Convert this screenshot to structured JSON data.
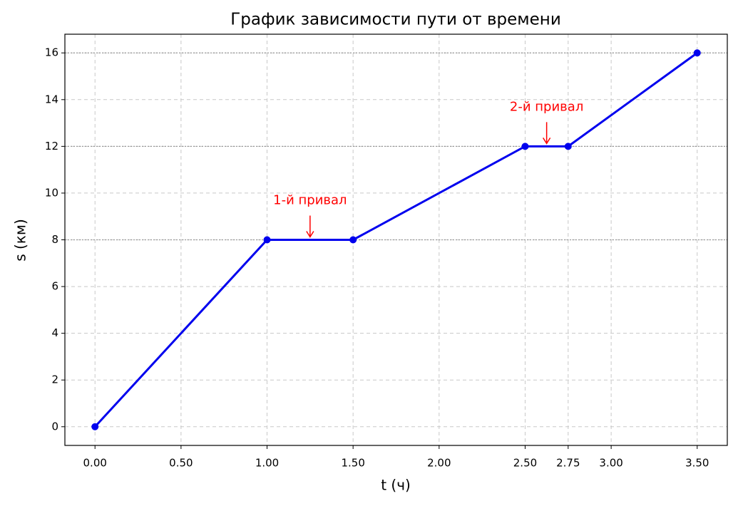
{
  "chart_data": {
    "type": "line",
    "title": "График зависимости пути от времени",
    "x_label": "t (ч)",
    "y_label": "s (км)",
    "x": [
      0,
      1,
      1.5,
      2.5,
      2.75,
      3.5
    ],
    "series": [
      {
        "color": "#0000ee",
        "values": [
          0,
          8,
          8,
          12,
          12,
          16
        ]
      }
    ],
    "xlim": [
      -0.175,
      3.675
    ],
    "ylim": [
      -0.8,
      16.8
    ],
    "xticks": [
      {
        "value": 0,
        "label": "0.00"
      },
      {
        "value": 0.5,
        "label": "0.50"
      },
      {
        "value": 1,
        "label": "1.00"
      },
      {
        "value": 1.5,
        "label": "1.50"
      },
      {
        "value": 2,
        "label": "2.00"
      },
      {
        "value": 2.5,
        "label": "2.50"
      },
      {
        "value": 2.75,
        "label": "2.75"
      },
      {
        "value": 3,
        "label": "3.00"
      },
      {
        "value": 3.5,
        "label": "3.50"
      }
    ],
    "yticks": [
      0,
      2,
      4,
      6,
      8,
      10,
      12,
      14,
      16
    ],
    "grid": true,
    "reference_lines": [
      8,
      12,
      16
    ],
    "annotations": [
      {
        "text": "1-й привал",
        "x": 1.25,
        "y": 8,
        "color": "#ff0000"
      },
      {
        "text": "2-й привал",
        "x": 2.625,
        "y": 12,
        "color": "#ff0000"
      }
    ]
  }
}
